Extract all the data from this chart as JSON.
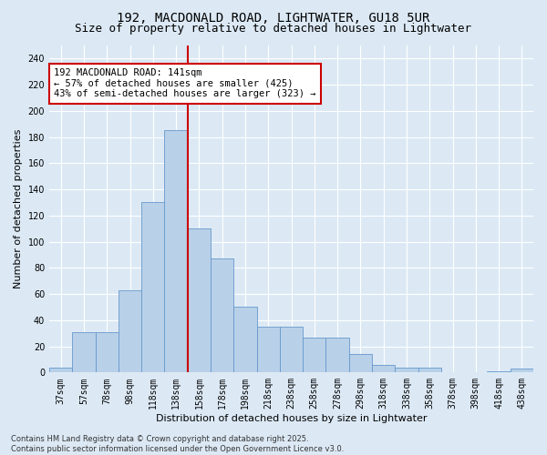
{
  "title1": "192, MACDONALD ROAD, LIGHTWATER, GU18 5UR",
  "title2": "Size of property relative to detached houses in Lightwater",
  "xlabel": "Distribution of detached houses by size in Lightwater",
  "ylabel": "Number of detached properties",
  "bar_labels": [
    "37sqm",
    "57sqm",
    "78sqm",
    "98sqm",
    "118sqm",
    "138sqm",
    "158sqm",
    "178sqm",
    "198sqm",
    "218sqm",
    "238sqm",
    "258sqm",
    "278sqm",
    "298sqm",
    "318sqm",
    "338sqm",
    "358sqm",
    "378sqm",
    "398sqm",
    "418sqm",
    "438sqm"
  ],
  "bar_values": [
    4,
    31,
    31,
    63,
    130,
    185,
    110,
    87,
    50,
    35,
    35,
    27,
    27,
    14,
    6,
    4,
    4,
    0,
    0,
    1,
    3
  ],
  "bar_color": "#b8d0e8",
  "bar_edge_color": "#6699cc",
  "background_color": "#dce9f5",
  "plot_bg_color": "#dce9f5",
  "red_line_x": 5.5,
  "red_line_color": "#cc0000",
  "annotation_text": "192 MACDONALD ROAD: 141sqm\n← 57% of detached houses are smaller (425)\n43% of semi-detached houses are larger (323) →",
  "annotation_box_facecolor": "#ffffff",
  "annotation_box_edgecolor": "#cc0000",
  "ylim": [
    0,
    250
  ],
  "yticks": [
    0,
    20,
    40,
    60,
    80,
    100,
    120,
    140,
    160,
    180,
    200,
    220,
    240
  ],
  "footnote": "Contains HM Land Registry data © Crown copyright and database right 2025.\nContains public sector information licensed under the Open Government Licence v3.0.",
  "title_fontsize": 10,
  "subtitle_fontsize": 9,
  "axis_label_fontsize": 8,
  "tick_fontsize": 7,
  "annotation_fontsize": 7.5,
  "footnote_fontsize": 6
}
